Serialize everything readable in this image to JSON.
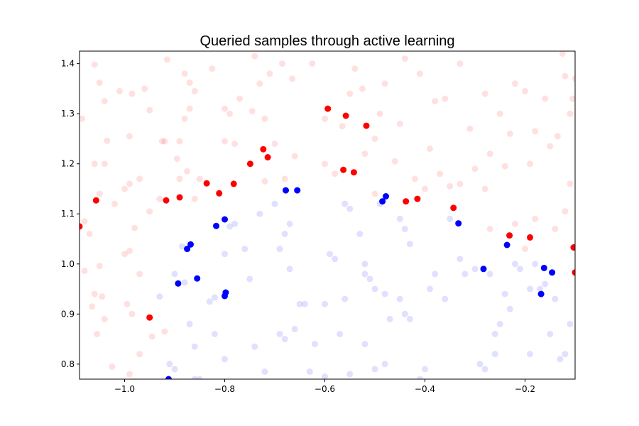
{
  "chart_data": {
    "type": "scatter",
    "title": "Queried samples through active learning",
    "xlabel": "",
    "ylabel": "",
    "xlim": [
      -1.09,
      -0.1
    ],
    "ylim": [
      0.77,
      1.425
    ],
    "xticks": [
      -1.0,
      -0.8,
      -0.6,
      -0.4,
      -0.2
    ],
    "xtick_labels": [
      "−1.0",
      "−0.8",
      "−0.6",
      "−0.4",
      "−0.2"
    ],
    "yticks": [
      0.8,
      0.9,
      1.0,
      1.1,
      1.2,
      1.3,
      1.4
    ],
    "ytick_labels": [
      "0.8",
      "0.9",
      "1.0",
      "1.1",
      "1.2",
      "1.3",
      "1.4"
    ],
    "grid": false,
    "legend": "none",
    "series": [
      {
        "kind": "queried",
        "color": "#ff0000",
        "alpha": 1.0,
        "points": [
          [
            -1.09,
            1.075
          ],
          [
            -1.057,
            1.127
          ],
          [
            -0.95,
            0.893
          ],
          [
            -0.917,
            1.127
          ],
          [
            -0.89,
            1.133
          ],
          [
            -0.836,
            1.161
          ],
          [
            -0.811,
            1.141
          ],
          [
            -0.782,
            1.16
          ],
          [
            -0.749,
            1.2
          ],
          [
            -0.723,
            1.229
          ],
          [
            -0.714,
            1.213
          ],
          [
            -0.594,
            1.31
          ],
          [
            -0.563,
            1.188
          ],
          [
            -0.558,
            1.296
          ],
          [
            -0.542,
            1.183
          ],
          [
            -0.517,
            1.276
          ],
          [
            -0.438,
            1.125
          ],
          [
            -0.415,
            1.13
          ],
          [
            -0.343,
            1.112
          ],
          [
            -0.231,
            1.057
          ],
          [
            -0.19,
            1.053
          ],
          [
            -0.103,
            1.033
          ],
          [
            -0.1,
            0.983
          ]
        ]
      },
      {
        "kind": "queried",
        "color": "#0000ff",
        "alpha": 1.0,
        "points": [
          [
            -0.912,
            0.77
          ],
          [
            -0.893,
            0.961
          ],
          [
            -0.875,
            1.03
          ],
          [
            -0.868,
            1.039
          ],
          [
            -0.855,
            0.971
          ],
          [
            -0.817,
            1.076
          ],
          [
            -0.8,
            1.089
          ],
          [
            -0.8,
            0.936
          ],
          [
            -0.798,
            0.943
          ],
          [
            -0.678,
            1.147
          ],
          [
            -0.655,
            1.147
          ],
          [
            -0.485,
            1.125
          ],
          [
            -0.478,
            1.135
          ],
          [
            -0.333,
            1.081
          ],
          [
            -0.283,
            0.99
          ],
          [
            -0.236,
            1.038
          ],
          [
            -0.168,
            0.94
          ],
          [
            -0.162,
            0.992
          ],
          [
            -0.146,
            0.983
          ]
        ]
      },
      {
        "kind": "background",
        "color": "#ff0000",
        "alpha": 0.12,
        "points": [
          [
            -1.06,
            1.398
          ],
          [
            -1.05,
            1.362
          ],
          [
            -1.04,
            1.325
          ],
          [
            -1.01,
            1.345
          ],
          [
            -0.985,
            1.34
          ],
          [
            -0.96,
            1.35
          ],
          [
            -0.95,
            1.307
          ],
          [
            -0.92,
            1.245
          ],
          [
            -0.915,
            1.408
          ],
          [
            -0.88,
            1.38
          ],
          [
            -0.87,
            1.362
          ],
          [
            -0.87,
            1.31
          ],
          [
            -0.88,
            1.29
          ],
          [
            -0.89,
            1.245
          ],
          [
            -0.895,
            1.21
          ],
          [
            -0.89,
            1.17
          ],
          [
            -0.875,
            1.185
          ],
          [
            -0.86,
            1.345
          ],
          [
            -0.825,
            1.39
          ],
          [
            -0.8,
            1.31
          ],
          [
            -0.79,
            1.3
          ],
          [
            -0.77,
            1.33
          ],
          [
            -0.745,
            1.305
          ],
          [
            -0.74,
            1.415
          ],
          [
            -0.73,
            1.36
          ],
          [
            -0.72,
            1.29
          ],
          [
            -0.71,
            1.38
          ],
          [
            -0.7,
            1.24
          ],
          [
            -0.685,
            1.4
          ],
          [
            -0.665,
            1.37
          ],
          [
            -0.625,
            1.4
          ],
          [
            -0.6,
            1.29
          ],
          [
            -0.6,
            1.2
          ],
          [
            -0.58,
            1.18
          ],
          [
            -0.565,
            1.275
          ],
          [
            -0.55,
            1.34
          ],
          [
            -0.54,
            1.39
          ],
          [
            -0.525,
            1.35
          ],
          [
            -0.5,
            1.25
          ],
          [
            -0.49,
            1.3
          ],
          [
            -0.48,
            1.36
          ],
          [
            -0.46,
            1.205
          ],
          [
            -0.45,
            1.28
          ],
          [
            -0.44,
            1.41
          ],
          [
            -0.41,
            1.38
          ],
          [
            -0.39,
            1.23
          ],
          [
            -0.38,
            1.325
          ],
          [
            -0.36,
            1.33
          ],
          [
            -0.35,
            1.155
          ],
          [
            -0.33,
            1.4
          ],
          [
            -0.31,
            1.27
          ],
          [
            -0.3,
            1.19
          ],
          [
            -0.28,
            1.34
          ],
          [
            -0.27,
            1.22
          ],
          [
            -0.25,
            1.3
          ],
          [
            -0.24,
            1.195
          ],
          [
            -0.23,
            1.26
          ],
          [
            -0.22,
            1.36
          ],
          [
            -0.2,
            1.345
          ],
          [
            -0.19,
            1.2
          ],
          [
            -0.18,
            1.265
          ],
          [
            -0.16,
            1.33
          ],
          [
            -0.15,
            1.235
          ],
          [
            -0.135,
            1.255
          ],
          [
            -0.125,
            1.42
          ],
          [
            -0.12,
            1.375
          ],
          [
            -0.11,
            1.3
          ],
          [
            -0.105,
            1.33
          ],
          [
            -0.1,
            1.37
          ],
          [
            -0.11,
            1.16
          ],
          [
            -0.12,
            1.105
          ],
          [
            -0.14,
            1.07
          ],
          [
            -0.18,
            1.09
          ],
          [
            -0.2,
            1.03
          ],
          [
            -0.22,
            1.08
          ],
          [
            -0.27,
            1.07
          ],
          [
            -0.28,
            1.15
          ],
          [
            -0.33,
            1.16
          ],
          [
            -0.37,
            1.18
          ],
          [
            -0.4,
            1.15
          ],
          [
            -0.42,
            1.17
          ],
          [
            -0.5,
            1.14
          ],
          [
            -0.52,
            1.22
          ],
          [
            -0.66,
            1.215
          ],
          [
            -0.68,
            1.17
          ],
          [
            -0.72,
            1.165
          ],
          [
            -0.78,
            1.24
          ],
          [
            -0.8,
            1.245
          ],
          [
            -0.85,
            1.17
          ],
          [
            -0.86,
            1.13
          ],
          [
            -0.93,
            1.13
          ],
          [
            -0.95,
            1.105
          ],
          [
            -0.97,
            1.17
          ],
          [
            -0.99,
            1.16
          ],
          [
            -1.0,
            1.15
          ],
          [
            -1.02,
            1.12
          ],
          [
            -1.04,
            1.2
          ],
          [
            -1.05,
            1.14
          ],
          [
            -1.06,
            1.2
          ],
          [
            -1.08,
            1.085
          ],
          [
            -1.07,
            1.06
          ],
          [
            -0.98,
            1.072
          ],
          [
            -0.99,
            1.026
          ],
          [
            -1.0,
            1.02
          ],
          [
            -1.05,
            0.996
          ],
          [
            -1.08,
            0.986
          ],
          [
            -1.06,
            0.94
          ],
          [
            -1.045,
            0.935
          ],
          [
            -1.04,
            0.89
          ],
          [
            -1.065,
            0.915
          ],
          [
            -1.055,
            0.86
          ],
          [
            -1.025,
            0.795
          ],
          [
            -0.99,
            0.78
          ],
          [
            -0.97,
            0.82
          ],
          [
            -0.995,
            0.92
          ],
          [
            -0.985,
            0.9
          ],
          [
            -0.97,
            0.98
          ],
          [
            -0.945,
            0.855
          ],
          [
            -0.925,
            1.245
          ],
          [
            -1.085,
            1.29
          ],
          [
            -1.035,
            1.246
          ],
          [
            -0.99,
            1.255
          ],
          [
            -0.92,
            0.865
          ]
        ]
      },
      {
        "kind": "background",
        "color": "#0000ff",
        "alpha": 0.12,
        "points": [
          [
            -0.93,
            0.935
          ],
          [
            -0.9,
            0.98
          ],
          [
            -0.885,
            1.035
          ],
          [
            -0.88,
            0.963
          ],
          [
            -0.87,
            0.88
          ],
          [
            -0.86,
            0.835
          ],
          [
            -0.85,
            0.77
          ],
          [
            -0.83,
            0.925
          ],
          [
            -0.82,
            0.933
          ],
          [
            -0.82,
            0.86
          ],
          [
            -0.8,
            0.81
          ],
          [
            -0.8,
            1.02
          ],
          [
            -0.79,
            1.075
          ],
          [
            -0.78,
            1.08
          ],
          [
            -0.76,
            1.03
          ],
          [
            -0.75,
            0.97
          ],
          [
            -0.74,
            0.835
          ],
          [
            -0.73,
            1.1
          ],
          [
            -0.72,
            0.785
          ],
          [
            -0.7,
            1.12
          ],
          [
            -0.69,
            1.03
          ],
          [
            -0.68,
            1.06
          ],
          [
            -0.67,
            1.08
          ],
          [
            -0.69,
            0.86
          ],
          [
            -0.68,
            0.85
          ],
          [
            -0.66,
            0.87
          ],
          [
            -0.65,
            0.92
          ],
          [
            -0.64,
            0.92
          ],
          [
            -0.63,
            0.785
          ],
          [
            -0.6,
            0.775
          ],
          [
            -0.59,
            1.02
          ],
          [
            -0.58,
            1.01
          ],
          [
            -0.56,
            1.12
          ],
          [
            -0.56,
            0.93
          ],
          [
            -0.55,
            0.78
          ],
          [
            -0.55,
            1.11
          ],
          [
            -0.53,
            1.06
          ],
          [
            -0.52,
            1.0
          ],
          [
            -0.52,
            0.98
          ],
          [
            -0.51,
            0.97
          ],
          [
            -0.5,
            0.95
          ],
          [
            -0.49,
            1.12
          ],
          [
            -0.48,
            0.94
          ],
          [
            -0.48,
            0.8
          ],
          [
            -0.47,
            0.89
          ],
          [
            -0.45,
            1.09
          ],
          [
            -0.44,
            1.07
          ],
          [
            -0.44,
            0.9
          ],
          [
            -0.43,
            1.04
          ],
          [
            -0.43,
            0.89
          ],
          [
            -0.41,
            0.77
          ],
          [
            -0.4,
            0.79
          ],
          [
            -0.39,
            0.95
          ],
          [
            -0.38,
            0.98
          ],
          [
            -0.36,
            0.93
          ],
          [
            -0.35,
            1.09
          ],
          [
            -0.33,
            1.01
          ],
          [
            -0.32,
            0.98
          ],
          [
            -0.3,
            0.99
          ],
          [
            -0.29,
            0.8
          ],
          [
            -0.28,
            0.79
          ],
          [
            -0.27,
            0.98
          ],
          [
            -0.26,
            0.86
          ],
          [
            -0.26,
            0.82
          ],
          [
            -0.25,
            0.88
          ],
          [
            -0.24,
            0.94
          ],
          [
            -0.23,
            0.91
          ],
          [
            -0.22,
            1.0
          ],
          [
            -0.21,
            0.99
          ],
          [
            -0.19,
            0.95
          ],
          [
            -0.18,
            1.0
          ],
          [
            -0.17,
            0.95
          ],
          [
            -0.16,
            0.96
          ],
          [
            -0.15,
            0.86
          ],
          [
            -0.14,
            0.93
          ],
          [
            -0.13,
            0.81
          ],
          [
            -0.12,
            0.82
          ],
          [
            -0.11,
            0.88
          ],
          [
            -0.19,
            0.82
          ],
          [
            -0.5,
            0.79
          ],
          [
            -0.45,
            0.93
          ],
          [
            -0.6,
            0.92
          ],
          [
            -0.62,
            0.84
          ],
          [
            -0.9,
            0.79
          ],
          [
            -0.91,
            0.8
          ],
          [
            -0.86,
            0.77
          ],
          [
            -0.74,
            0.75
          ],
          [
            -0.67,
            0.99
          ],
          [
            -0.57,
            0.86
          ],
          [
            -0.52,
            0.84
          ]
        ]
      }
    ]
  }
}
